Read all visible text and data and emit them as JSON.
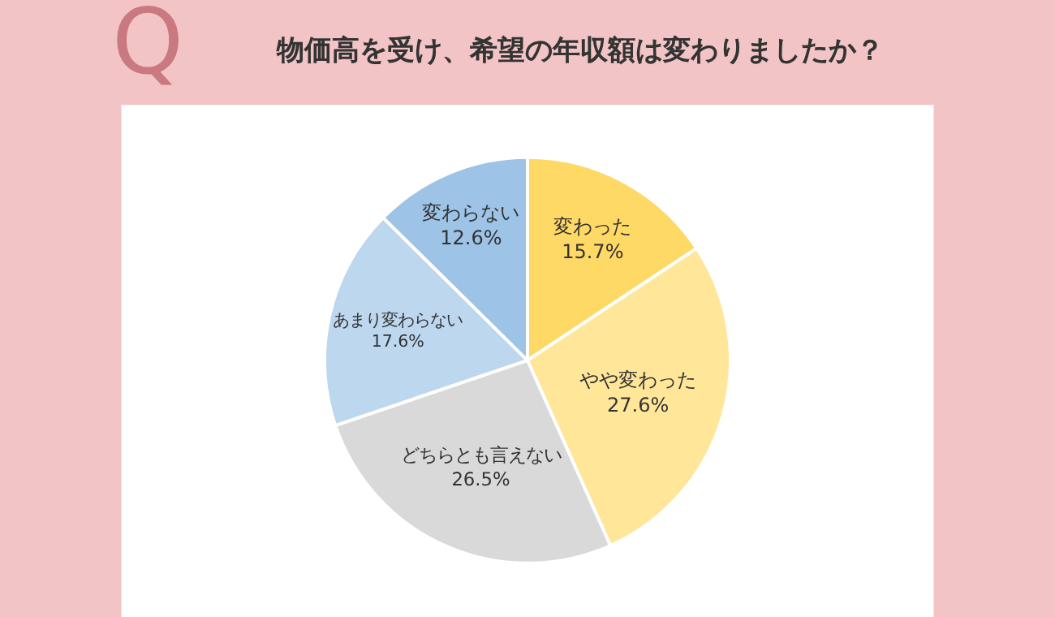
{
  "chart_data": {
    "type": "pie",
    "title": "物価高を受け、希望の年収額は変わりましたか？",
    "annotations": [
      "Q"
    ],
    "categories": [
      "変わった",
      "やや変わった",
      "どちらとも言えない",
      "あまり変わらない",
      "変わらない"
    ],
    "values": [
      15.7,
      27.6,
      26.5,
      17.6,
      12.6
    ],
    "value_labels": [
      "15.7%",
      "27.6%",
      "26.5%",
      "17.6%",
      "12.6%"
    ],
    "colors": [
      "#ffd966",
      "#ffe699",
      "#d9d9d9",
      "#bdd7ee",
      "#9dc3e6"
    ],
    "legend": false
  }
}
